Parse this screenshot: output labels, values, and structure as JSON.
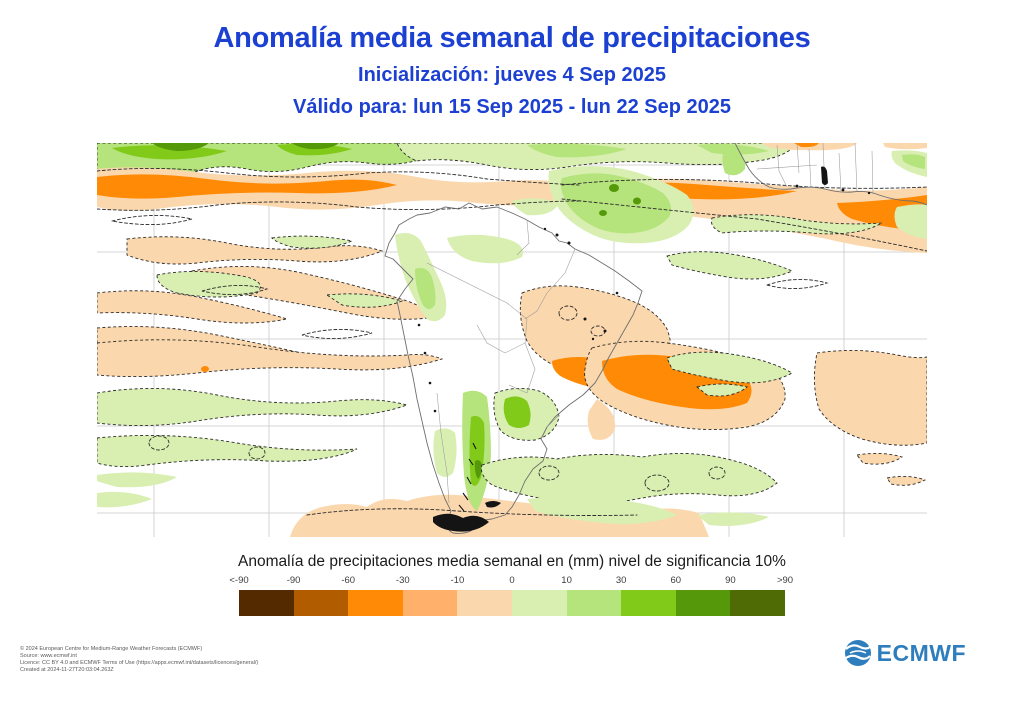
{
  "header": {
    "title": "Anomalía media semanal de precipitaciones",
    "init_line": "Inicialización: jueves 4 Sep 2025",
    "valid_line": "Válido para: lun 15 Sep 2025 - lun 22 Sep 2025",
    "accent_color": "#1c40d2"
  },
  "map": {
    "region_depicted": "South America with surrounding Pacific and Atlantic oceans; West Africa at top right",
    "background_color": "#ffffff",
    "gridline_color": "#c9c9c9",
    "coastline_color": "#6e6e6e",
    "contour_style": "dashed black significance outlines",
    "visible_features": [
      "green anomaly band along the northern map edge",
      "orange negative anomaly band across the tropical Atlantic (both west and east)",
      "green positive anomaly over Colombia and Venezuela",
      "peach negative anomaly over eastern Brazil with orange core off the southeast coast",
      "diagonal peach streaks over the southeast Pacific",
      "light green band over the mid-latitude Pacific and South Atlantic",
      "strong green anomaly over southern Chile (Patagonia)",
      "peach negative anomaly band along the southern map edge"
    ]
  },
  "legend": {
    "caption": "Anomalía de precipitaciones media semanal en (mm) nivel de significancia 10%",
    "tick_labels": [
      "<-90",
      "-90",
      "-60",
      "-30",
      "-10",
      "0",
      "10",
      "30",
      "60",
      "90",
      ">90"
    ],
    "colors": [
      "#542b00",
      "#b25c00",
      "#ff8a05",
      "#ffb16b",
      "#fbd7ad",
      "#d9efb2",
      "#b5e37c",
      "#82ca19",
      "#55990a",
      "#4e6b05"
    ]
  },
  "footer": {
    "lines": [
      "© 2024 European Centre for Medium-Range Weather Forecasts (ECMWF)",
      "Source: www.ecmwf.int",
      "Licence: CC BY 4.0 and ECMWF Terms of Use (https://apps.ecmwf.int/datasets/licences/general/)",
      "Created at 2024-11-27T20:03:04.263Z"
    ],
    "logo_text": "ECMWF",
    "logo_color": "#2e7ebd"
  }
}
